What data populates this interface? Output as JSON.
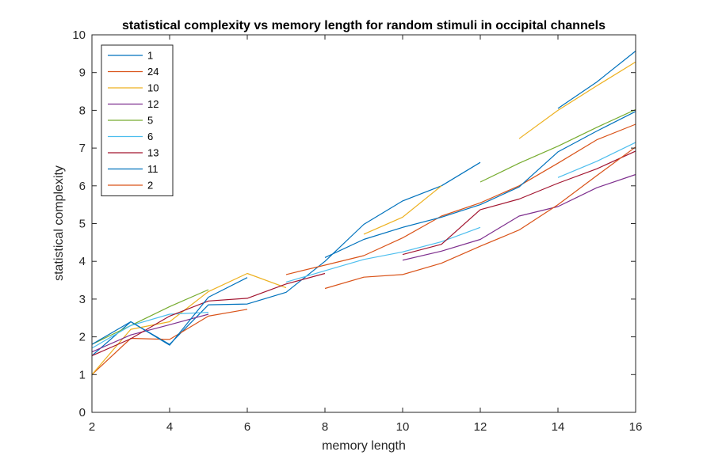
{
  "chart_data": {
    "type": "line",
    "title": "statistical complexity vs memory length for random stimuli in occipital channels",
    "xlabel": "memory length",
    "ylabel": "statistical complexity",
    "xlim": [
      2,
      16
    ],
    "ylim": [
      0,
      10
    ],
    "xticks": [
      2,
      4,
      6,
      8,
      10,
      12,
      14,
      16
    ],
    "yticks": [
      0,
      1,
      2,
      3,
      4,
      5,
      6,
      7,
      8,
      9,
      10
    ],
    "grid": false,
    "legend_position": "top-left",
    "series": [
      {
        "name": "1",
        "color": "#0072BD",
        "points": [
          [
            2,
            1.5
          ],
          [
            3,
            2.4
          ],
          [
            4,
            1.8
          ],
          [
            5,
            2.85
          ],
          [
            6,
            2.87
          ],
          [
            7,
            3.18
          ],
          [
            8,
            4.0
          ],
          [
            9,
            4.98
          ],
          [
            10,
            5.6
          ],
          [
            11,
            6.0
          ],
          [
            12,
            6.62
          ],
          [
            null,
            null
          ],
          [
            14,
            8.05
          ],
          [
            15,
            8.75
          ],
          [
            16,
            9.57
          ]
        ]
      },
      {
        "name": "24",
        "color": "#D95319",
        "points": [
          [
            2,
            1.0
          ],
          [
            3,
            1.96
          ],
          [
            4,
            1.93
          ],
          [
            5,
            2.55
          ],
          [
            6,
            2.73
          ],
          [
            null,
            null
          ],
          [
            7,
            3.65
          ],
          [
            8,
            3.9
          ],
          [
            9,
            4.15
          ],
          [
            10,
            4.62
          ],
          [
            11,
            5.2
          ],
          [
            12,
            5.55
          ],
          [
            13,
            6.0
          ],
          [
            14,
            6.6
          ],
          [
            15,
            7.22
          ],
          [
            16,
            7.63
          ]
        ]
      },
      {
        "name": "10",
        "color": "#EDB120",
        "points": [
          [
            2,
            1.0
          ],
          [
            3,
            2.2
          ],
          [
            4,
            2.4
          ],
          [
            5,
            3.2
          ],
          [
            6,
            3.68
          ],
          [
            7,
            3.3
          ],
          [
            null,
            null
          ],
          [
            9,
            4.72
          ],
          [
            10,
            5.17
          ],
          [
            11,
            6.0
          ],
          [
            null,
            null
          ],
          [
            13,
            7.25
          ],
          [
            14,
            8.0
          ],
          [
            15,
            8.65
          ],
          [
            16,
            9.28
          ]
        ]
      },
      {
        "name": "12",
        "color": "#7E2F8E",
        "points": [
          [
            2,
            1.6
          ],
          [
            3,
            2.05
          ],
          [
            4,
            2.32
          ],
          [
            5,
            2.6
          ],
          [
            null,
            null
          ],
          [
            10,
            4.03
          ],
          [
            11,
            4.27
          ],
          [
            12,
            4.58
          ],
          [
            13,
            5.2
          ],
          [
            14,
            5.45
          ],
          [
            15,
            5.95
          ],
          [
            16,
            6.3
          ]
        ]
      },
      {
        "name": "5",
        "color": "#77AC30",
        "points": [
          [
            2,
            1.8
          ],
          [
            3,
            2.3
          ],
          [
            4,
            2.8
          ],
          [
            5,
            3.25
          ],
          [
            null,
            null
          ],
          [
            12,
            6.1
          ],
          [
            13,
            6.6
          ],
          [
            14,
            7.05
          ],
          [
            15,
            7.55
          ],
          [
            16,
            8.02
          ]
        ]
      },
      {
        "name": "6",
        "color": "#4DBEEE",
        "points": [
          [
            2,
            1.7
          ],
          [
            3,
            2.3
          ],
          [
            4,
            2.6
          ],
          [
            5,
            2.65
          ],
          [
            null,
            null
          ],
          [
            7,
            3.45
          ],
          [
            8,
            3.75
          ],
          [
            9,
            4.05
          ],
          [
            10,
            4.25
          ],
          [
            11,
            4.52
          ],
          [
            12,
            4.9
          ],
          [
            null,
            null
          ],
          [
            14,
            6.22
          ],
          [
            15,
            6.65
          ],
          [
            16,
            7.15
          ]
        ]
      },
      {
        "name": "13",
        "color": "#A2142F",
        "points": [
          [
            2,
            1.5
          ],
          [
            3,
            1.95
          ],
          [
            4,
            2.55
          ],
          [
            5,
            2.95
          ],
          [
            6,
            3.02
          ],
          [
            7,
            3.4
          ],
          [
            8,
            3.68
          ],
          [
            null,
            null
          ],
          [
            10,
            4.18
          ],
          [
            11,
            4.45
          ],
          [
            12,
            5.37
          ],
          [
            13,
            5.65
          ],
          [
            14,
            6.07
          ],
          [
            15,
            6.45
          ],
          [
            16,
            6.92
          ]
        ]
      },
      {
        "name": "11",
        "color": "#0072BD",
        "points": [
          [
            2,
            1.8
          ],
          [
            3,
            2.4
          ],
          [
            4,
            1.78
          ],
          [
            5,
            3.05
          ],
          [
            6,
            3.57
          ],
          [
            null,
            null
          ],
          [
            8,
            4.1
          ],
          [
            9,
            4.58
          ],
          [
            10,
            4.9
          ],
          [
            11,
            5.17
          ],
          [
            12,
            5.5
          ],
          [
            13,
            5.97
          ],
          [
            14,
            6.9
          ],
          [
            15,
            7.45
          ],
          [
            16,
            7.97
          ]
        ]
      },
      {
        "name": "2",
        "color": "#D95319",
        "points": [
          [
            8,
            3.28
          ],
          [
            9,
            3.58
          ],
          [
            10,
            3.65
          ],
          [
            11,
            3.95
          ],
          [
            12,
            4.4
          ],
          [
            13,
            4.83
          ],
          [
            14,
            5.5
          ],
          [
            15,
            6.27
          ],
          [
            16,
            7.03
          ]
        ]
      }
    ]
  }
}
